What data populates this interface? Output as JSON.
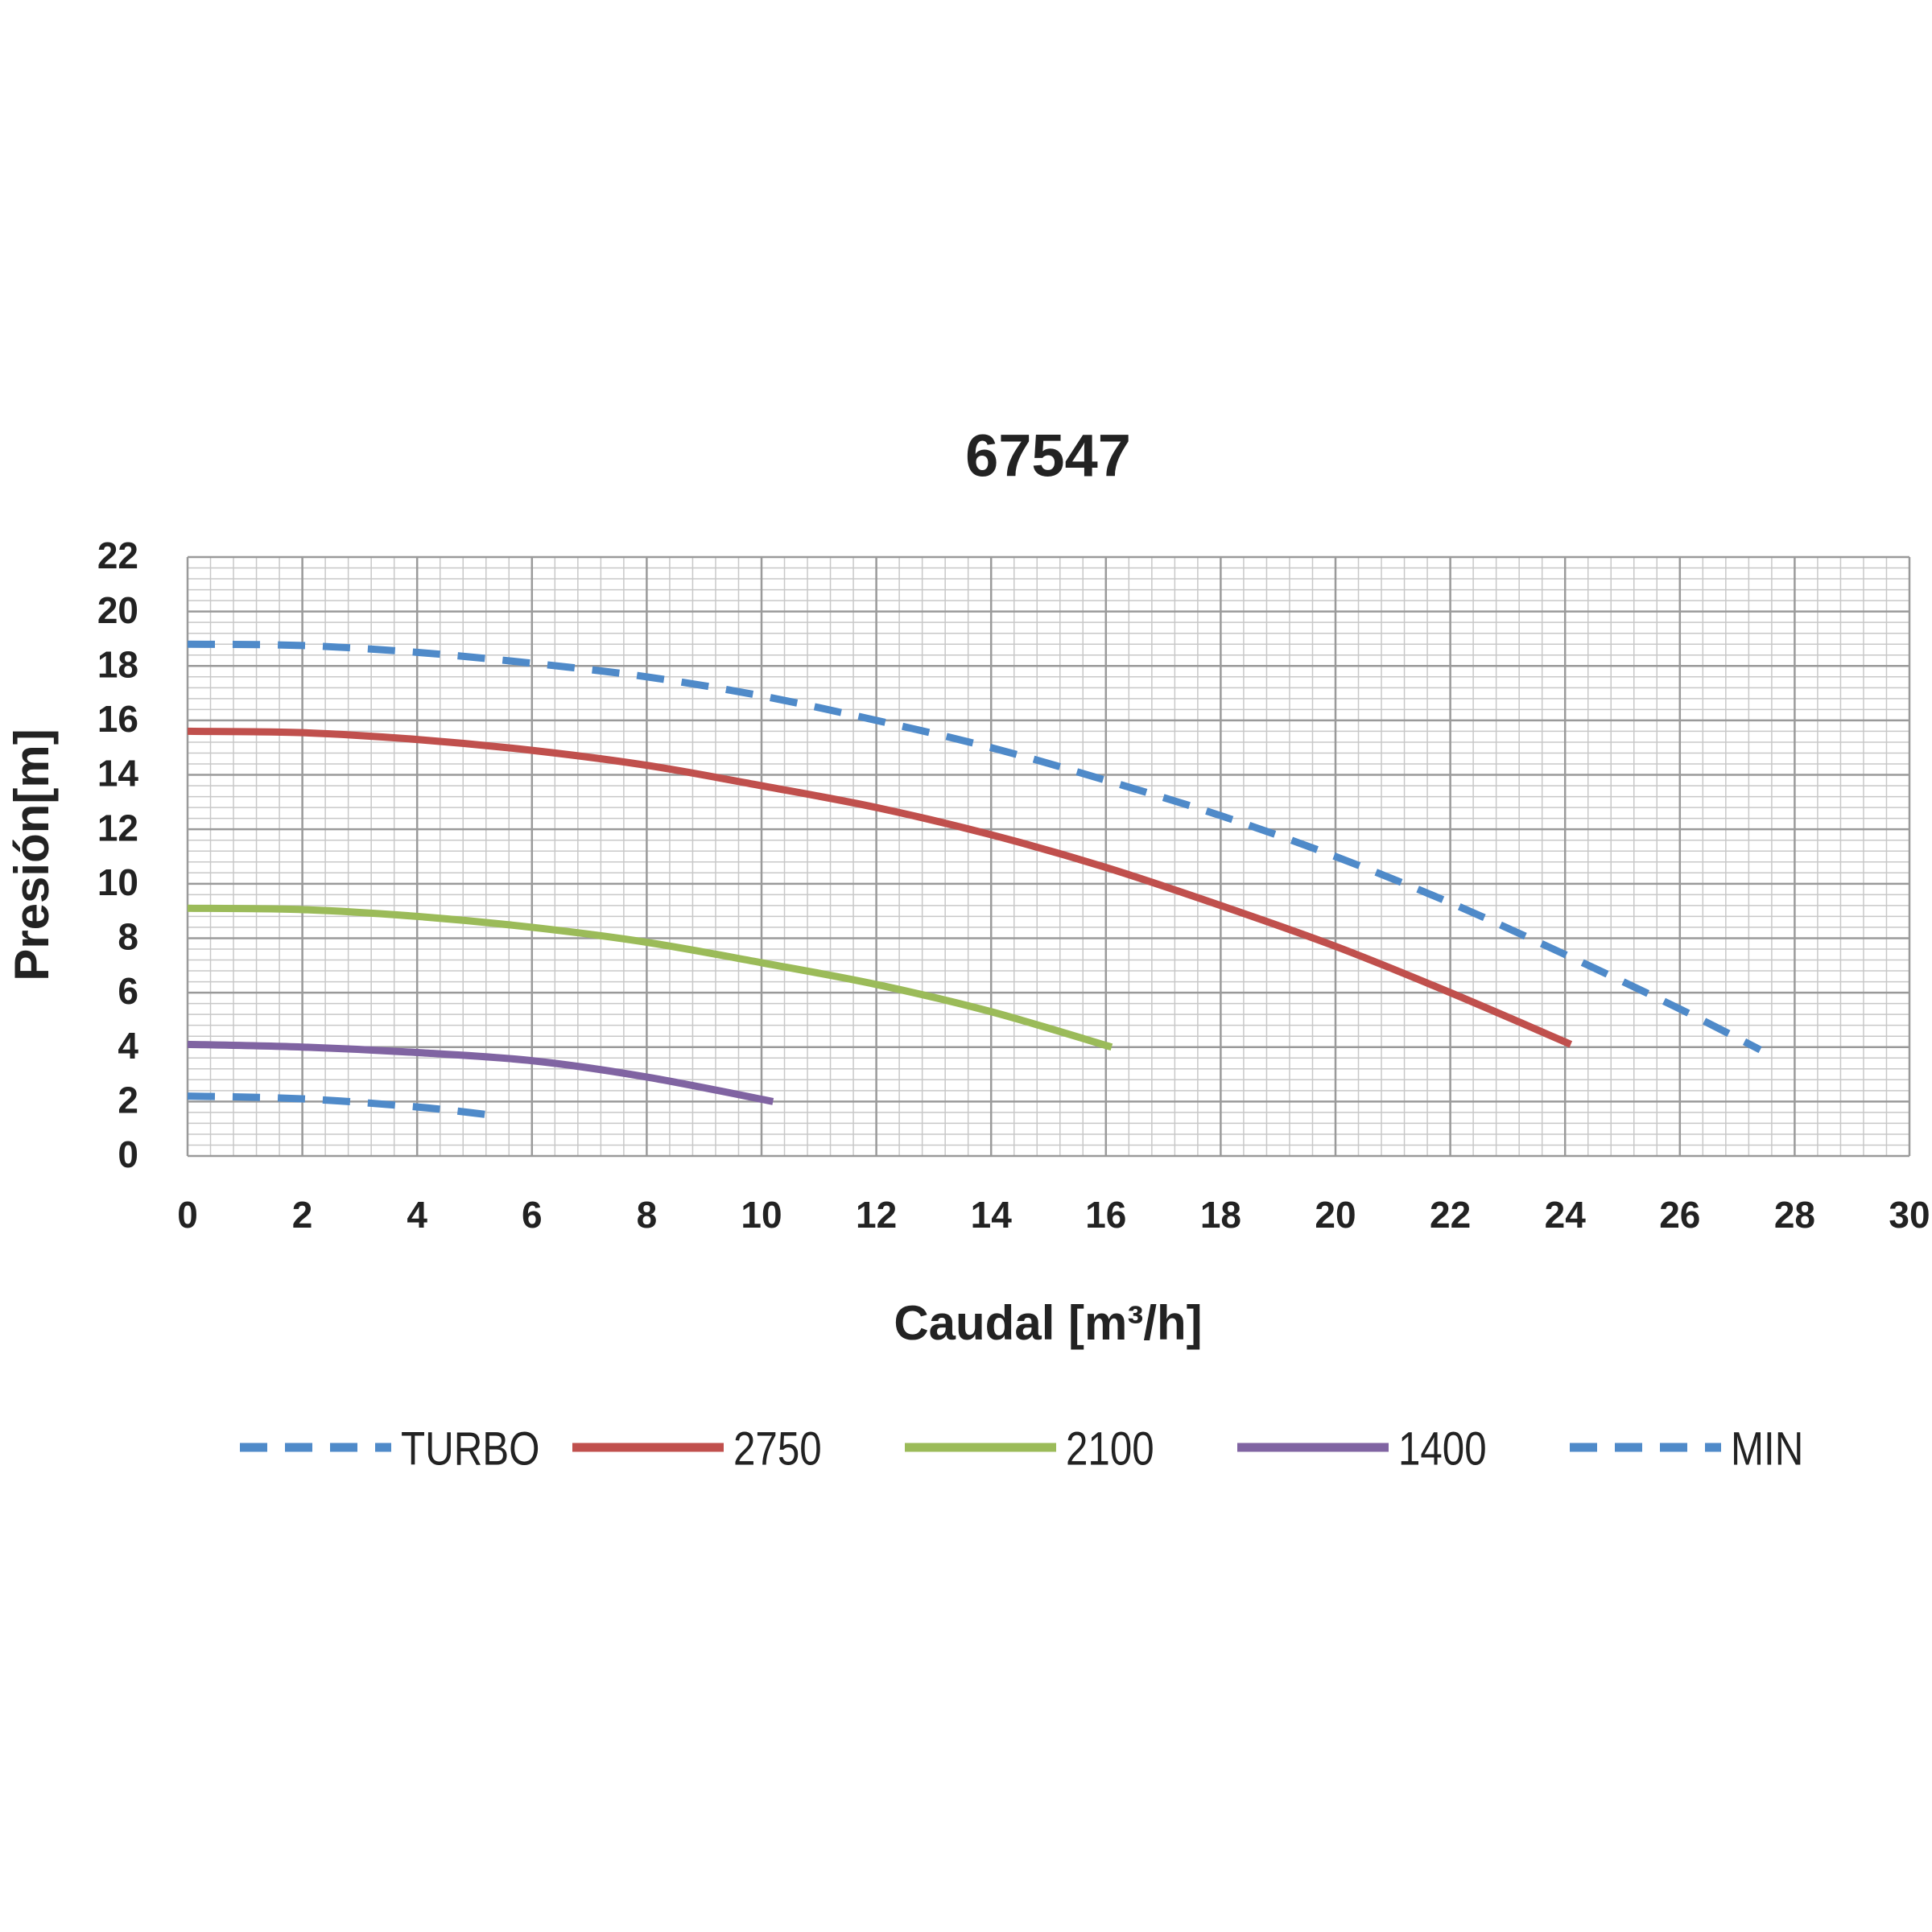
{
  "chart_data": {
    "type": "line",
    "title": "67547",
    "x_label": "Caudal [m³/h]",
    "y_label": "Presión[m]",
    "xlim": [
      0,
      30
    ],
    "xticks": [
      0,
      2,
      4,
      6,
      8,
      10,
      12,
      14,
      16,
      18,
      20,
      22,
      24,
      26,
      28,
      30
    ],
    "ylim": [
      0,
      22
    ],
    "yticks": [
      0,
      2,
      4,
      6,
      8,
      10,
      12,
      14,
      16,
      18,
      20,
      22
    ],
    "grid": true,
    "minor_divisions": 5,
    "legend": "bottom",
    "series": [
      {
        "name": "TURBO",
        "color": "#4f8ac9",
        "dashed": true,
        "x": [
          0,
          2,
          4,
          6,
          8,
          10,
          12,
          14,
          16,
          18,
          20,
          22,
          24,
          26,
          27.4
        ],
        "values": [
          18.8,
          18.75,
          18.5,
          18.1,
          17.6,
          16.9,
          16.0,
          15.0,
          13.8,
          12.5,
          11.0,
          9.3,
          7.4,
          5.4,
          3.9
        ]
      },
      {
        "name": "2750",
        "color": "#c0504d",
        "dashed": false,
        "x": [
          0,
          2,
          4,
          6,
          8,
          10,
          12,
          14,
          16,
          18,
          20,
          22,
          24.1
        ],
        "values": [
          15.6,
          15.55,
          15.3,
          14.9,
          14.35,
          13.6,
          12.8,
          11.8,
          10.6,
          9.2,
          7.7,
          6.0,
          4.1
        ]
      },
      {
        "name": "2100",
        "color": "#9bbb59",
        "dashed": false,
        "x": [
          0,
          2,
          4,
          6,
          8,
          10,
          12,
          14,
          16.1
        ],
        "values": [
          9.1,
          9.05,
          8.8,
          8.4,
          7.85,
          7.1,
          6.3,
          5.3,
          4.0
        ]
      },
      {
        "name": "1400",
        "color": "#8064a2",
        "dashed": false,
        "x": [
          0,
          2,
          4,
          6,
          8,
          10.2
        ],
        "values": [
          4.1,
          4.0,
          3.8,
          3.5,
          2.9,
          2.0
        ]
      },
      {
        "name": "MIN",
        "color": "#4f8ac9",
        "dashed": true,
        "x": [
          0,
          2,
          4,
          5.3
        ],
        "values": [
          2.2,
          2.1,
          1.8,
          1.5
        ]
      }
    ]
  }
}
